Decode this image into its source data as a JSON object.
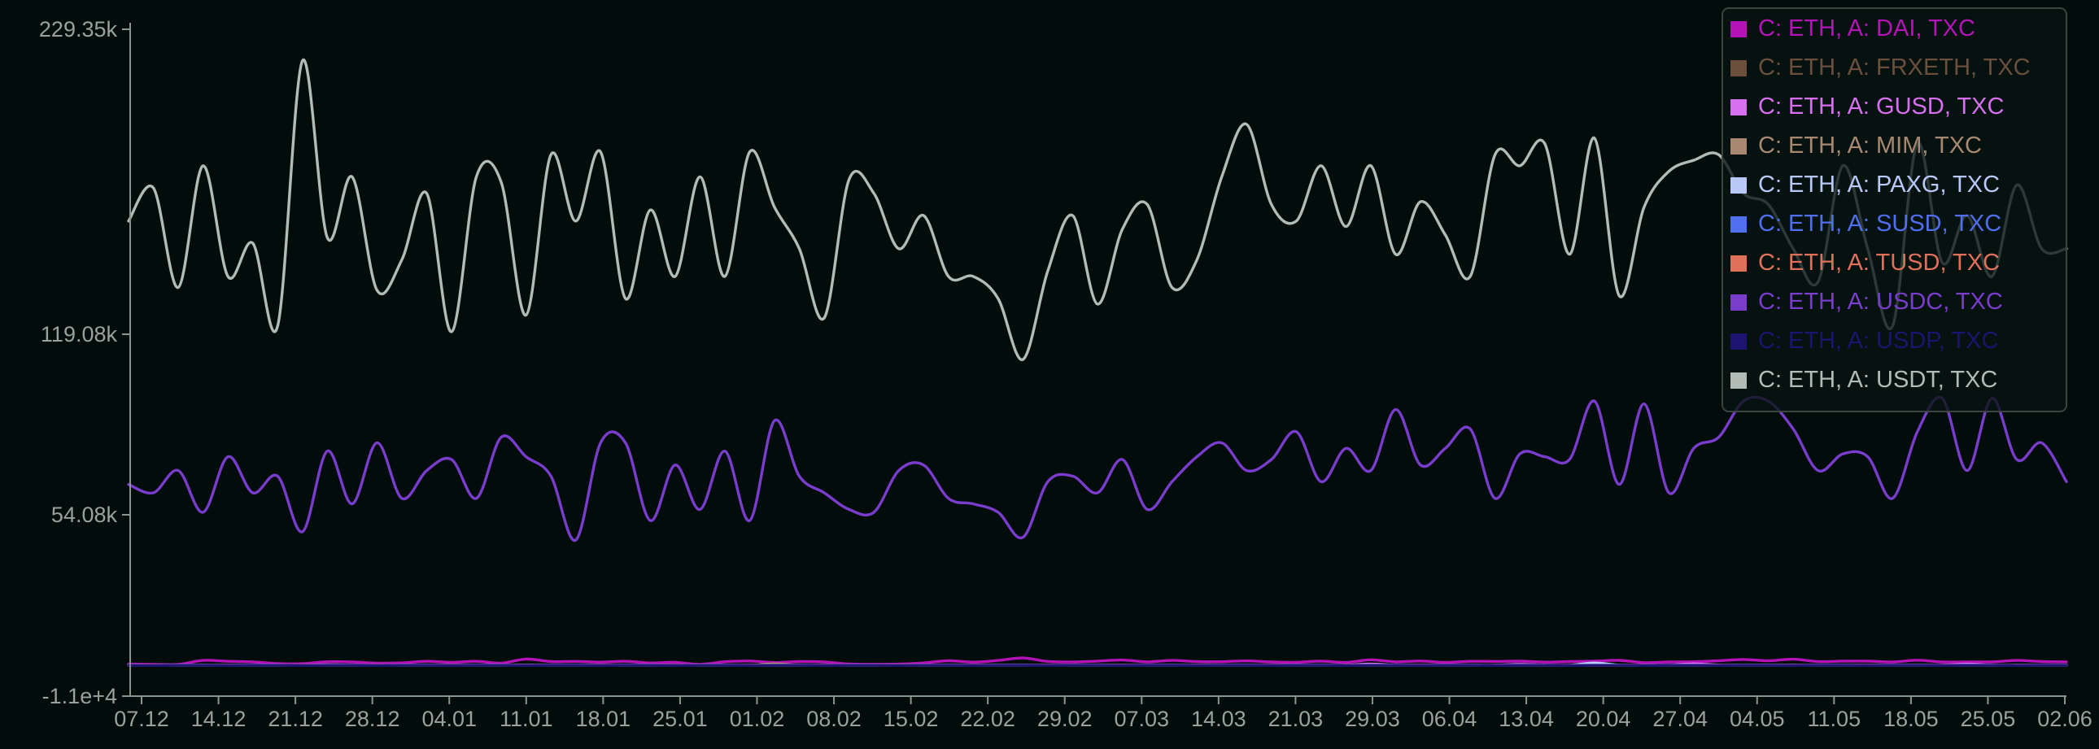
{
  "chart_data": {
    "type": "line",
    "title": "",
    "xlabel": "",
    "ylabel": "",
    "y_ticks": [
      "229.35k",
      "119.08k",
      "54.08k",
      "-1.1e+4"
    ],
    "ylim": [
      -11000,
      229350
    ],
    "x_ticks": [
      "07.12",
      "14.12",
      "21.12",
      "28.12",
      "04.01",
      "11.01",
      "18.01",
      "25.01",
      "01.02",
      "08.02",
      "15.02",
      "22.02",
      "29.02",
      "07.03",
      "14.03",
      "21.03",
      "29.03",
      "06.04",
      "13.04",
      "20.04",
      "27.04",
      "04.05",
      "11.05",
      "18.05",
      "25.05",
      "02.06"
    ],
    "grid": false,
    "legend_position": "top-right",
    "series": [
      {
        "name": "C: ETH, A: DAI, TXC",
        "color": "#b512b8",
        "values": [
          500,
          420,
          380,
          1800,
          1500,
          1300,
          700,
          650,
          1350,
          1250,
          850,
          950,
          1500,
          1100,
          1500,
          850,
          2300,
          1400,
          1450,
          1200,
          1500,
          900,
          1150,
          400,
          1350,
          1600,
          1050,
          1400,
          1250,
          550,
          450,
          500,
          900,
          1700,
          1200,
          1800,
          2700,
          1450,
          1250,
          1550,
          1950,
          1300,
          1800,
          1400,
          1350,
          1650,
          1250,
          1150,
          1550,
          1100,
          2050,
          1300,
          1600,
          1100,
          1500,
          1450,
          1550,
          1200,
          1400,
          1550,
          1850,
          1000,
          1250,
          1350,
          1700,
          2150,
          1700,
          2250,
          1400,
          1550,
          1550,
          1250,
          1900,
          1250,
          1300,
          1300,
          1800,
          1400,
          1300
        ]
      },
      {
        "name": "C: ETH, A: FRXETH, TXC",
        "color": "#6b4f3c",
        "values": [
          60,
          50,
          70,
          60,
          80,
          55,
          75,
          60,
          90,
          60,
          70,
          80,
          100,
          60,
          70,
          80,
          150,
          60,
          70,
          80,
          90,
          60,
          70,
          80,
          90,
          60,
          70,
          80,
          90,
          60,
          70,
          80,
          90,
          60,
          70,
          80,
          90,
          60,
          70,
          80,
          90,
          60,
          70,
          80,
          90,
          60,
          70,
          80,
          90,
          60,
          70,
          80,
          90,
          60,
          70,
          80,
          90,
          60,
          70,
          80,
          90,
          60,
          70,
          80,
          90,
          60,
          70,
          80,
          90,
          60,
          70,
          80,
          90,
          60,
          70,
          80,
          90,
          60,
          70
        ]
      },
      {
        "name": "C: ETH, A: GUSD, TXC",
        "color": "#d86ef0",
        "values": [
          120,
          100,
          90,
          110,
          100,
          130,
          90,
          100,
          250,
          110,
          90,
          100,
          120,
          90,
          110,
          90,
          150,
          100,
          110,
          90,
          100,
          120,
          90,
          110,
          90,
          100,
          160,
          90,
          110,
          100,
          90,
          120,
          100,
          110,
          90,
          100,
          120,
          90,
          110,
          100,
          90,
          100,
          100,
          120,
          90,
          110,
          100,
          90,
          120,
          100,
          500,
          90,
          110,
          100,
          120,
          90,
          400,
          100,
          110,
          90,
          100,
          110,
          90,
          600,
          120,
          110,
          90,
          100,
          120,
          90,
          110,
          100,
          90,
          120,
          500,
          110,
          90,
          100,
          100
        ]
      },
      {
        "name": "C: ETH, A: MIM, TXC",
        "color": "#a88870",
        "values": [
          40,
          35,
          45,
          30,
          40,
          35,
          45,
          30,
          40,
          35,
          45,
          30,
          40,
          35,
          45,
          30,
          40,
          35,
          45,
          30,
          40,
          35,
          45,
          30,
          40,
          35,
          600,
          30,
          40,
          35,
          45,
          30,
          40,
          35,
          45,
          30,
          40,
          35,
          45,
          30,
          40,
          35,
          45,
          30,
          40,
          35,
          45,
          30,
          40,
          35,
          45,
          30,
          40,
          35,
          45,
          30,
          40,
          35,
          45,
          30,
          40,
          35,
          45,
          30,
          40,
          35,
          45,
          30,
          40,
          35,
          45,
          30,
          40,
          35,
          45,
          30,
          40,
          35,
          45
        ]
      },
      {
        "name": "C: ETH, A: PAXG, TXC",
        "color": "#b8c8f8",
        "values": [
          80,
          70,
          90,
          80,
          70,
          90,
          80,
          70,
          90,
          80,
          70,
          90,
          80,
          70,
          90,
          80,
          70,
          90,
          80,
          70,
          90,
          80,
          70,
          90,
          80,
          70,
          90,
          80,
          70,
          90,
          80,
          70,
          90,
          80,
          70,
          90,
          80,
          70,
          90,
          80,
          70,
          90,
          80,
          70,
          90,
          80,
          70,
          90,
          80,
          70,
          90,
          80,
          70,
          90,
          80,
          70,
          90,
          80,
          70,
          900,
          80,
          70,
          90,
          80,
          70,
          90,
          80,
          70,
          90,
          80,
          70,
          90,
          80,
          70,
          90,
          80,
          70,
          90,
          80
        ]
      },
      {
        "name": "C: ETH, A: SUSD, TXC",
        "color": "#4f6ef0",
        "values": [
          50,
          40,
          60,
          50,
          40,
          60,
          50,
          40,
          60,
          50,
          40,
          60,
          50,
          40,
          60,
          50,
          40,
          60,
          50,
          40,
          60,
          50,
          40,
          60,
          50,
          40,
          60,
          50,
          40,
          60,
          50,
          40,
          60,
          50,
          40,
          60,
          50,
          40,
          60,
          50,
          40,
          60,
          50,
          40,
          60,
          50,
          40,
          60,
          50,
          40,
          60,
          50,
          40,
          60,
          50,
          40,
          60,
          50,
          40,
          60,
          50,
          40,
          60,
          50,
          40,
          60,
          50,
          40,
          60,
          50,
          40,
          60,
          50,
          40,
          60,
          50,
          40,
          60,
          50
        ]
      },
      {
        "name": "C: ETH, A: TUSD, TXC",
        "color": "#e0705a",
        "values": [
          30,
          25,
          35,
          30,
          25,
          35,
          30,
          25,
          35,
          30,
          25,
          35,
          30,
          25,
          35,
          30,
          25,
          35,
          30,
          25,
          35,
          30,
          25,
          35,
          30,
          25,
          35,
          30,
          25,
          35,
          30,
          25,
          35,
          30,
          25,
          35,
          30,
          25,
          35,
          30,
          25,
          35,
          30,
          25,
          35,
          30,
          25,
          35,
          30,
          25,
          35,
          30,
          25,
          35,
          30,
          25,
          35,
          30,
          25,
          35,
          30,
          25,
          35,
          30,
          25,
          35,
          30,
          25,
          35,
          30,
          25,
          35,
          30,
          25,
          35,
          30,
          25,
          35,
          30
        ]
      },
      {
        "name": "C: ETH, A: USDC, TXC",
        "color": "#7a3ccc",
        "values": [
          65000,
          62000,
          70000,
          55000,
          75000,
          62000,
          68000,
          48000,
          77000,
          58000,
          80000,
          60000,
          70000,
          74000,
          60000,
          82000,
          75000,
          68000,
          45000,
          80000,
          80000,
          52000,
          72000,
          56000,
          77000,
          52000,
          88000,
          68000,
          62000,
          56000,
          55000,
          70000,
          72000,
          60000,
          58000,
          55000,
          46000,
          66000,
          68000,
          62000,
          74000,
          56000,
          66000,
          75000,
          80000,
          70000,
          74000,
          84000,
          66000,
          78000,
          70000,
          92000,
          72000,
          78000,
          85000,
          60000,
          76000,
          75000,
          74000,
          95000,
          65000,
          94000,
          62000,
          78000,
          82000,
          95000,
          95000,
          85000,
          70000,
          76000,
          75000,
          60000,
          84000,
          96000,
          70000,
          96000,
          74000,
          80000,
          66000
        ]
      },
      {
        "name": "C: ETH, A: USDP, TXC",
        "color": "#1c1470",
        "values": [
          20,
          15,
          25,
          20,
          15,
          25,
          20,
          15,
          25,
          20,
          15,
          25,
          20,
          15,
          25,
          20,
          15,
          25,
          20,
          15,
          25,
          20,
          15,
          25,
          20,
          15,
          25,
          20,
          15,
          25,
          20,
          15,
          25,
          20,
          15,
          25,
          20,
          15,
          25,
          20,
          15,
          25,
          20,
          15,
          25,
          20,
          15,
          25,
          20,
          15,
          25,
          20,
          15,
          25,
          20,
          15,
          25,
          20,
          15,
          25,
          20,
          15,
          25,
          20,
          15,
          25,
          20,
          15,
          25,
          20,
          15,
          25,
          20,
          15,
          25,
          20,
          15,
          25,
          20
        ]
      },
      {
        "name": "C: ETH, A: USDT, TXC",
        "color": "#b3bbb6",
        "values": [
          160000,
          172000,
          136000,
          180000,
          140000,
          152000,
          122000,
          218000,
          154000,
          176000,
          135000,
          146000,
          170000,
          120000,
          176000,
          174000,
          126000,
          184000,
          160000,
          185000,
          132000,
          164000,
          140000,
          176000,
          140000,
          185000,
          165000,
          150000,
          125000,
          175000,
          170000,
          150000,
          162000,
          140000,
          140000,
          132000,
          110000,
          142000,
          162000,
          130000,
          157000,
          166000,
          136000,
          146000,
          176000,
          195000,
          166000,
          160000,
          180000,
          158000,
          180000,
          148000,
          167000,
          155000,
          140000,
          184000,
          180000,
          188000,
          148000,
          190000,
          133000,
          165000,
          178000,
          182000,
          184000,
          170000,
          166000,
          150000,
          138000,
          180000,
          150000,
          122000,
          188000,
          145000,
          162000,
          140000,
          173000,
          150000,
          150000
        ]
      }
    ]
  }
}
